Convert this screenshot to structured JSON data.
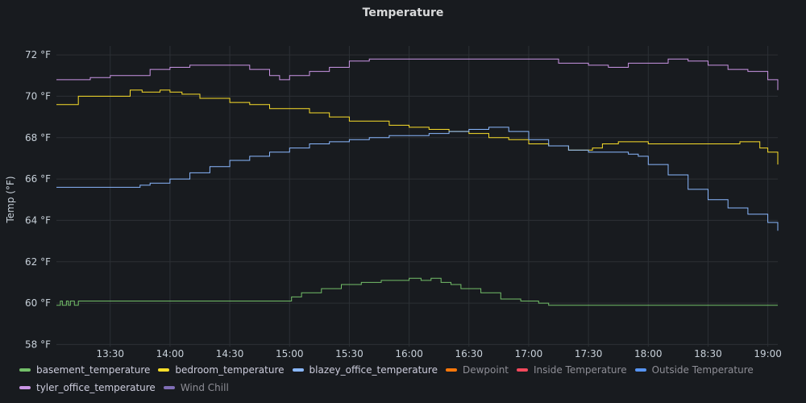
{
  "chart_data": {
    "type": "line",
    "title": "Temperature",
    "ylabel": "Temp (°F)",
    "y_unit": "°F",
    "ylim": [
      57.9,
      72.9
    ],
    "y_ticks": [
      58,
      60,
      62,
      64,
      66,
      68,
      70,
      72
    ],
    "xlim": [
      "13:03",
      "19:05"
    ],
    "x_ticks": [
      "13:30",
      "14:00",
      "14:30",
      "15:00",
      "15:30",
      "16:00",
      "16:30",
      "17:00",
      "17:30",
      "18:00",
      "18:30",
      "19:00"
    ],
    "grid": true,
    "legend_position": "bottom",
    "series": [
      {
        "name": "basement_temperature",
        "color": "#73bf69",
        "visible": true,
        "x": [
          "13:03",
          "13:05",
          "13:06",
          "13:08",
          "13:09",
          "13:10",
          "13:12",
          "13:14",
          "13:20",
          "13:30",
          "14:00",
          "14:30",
          "15:00",
          "15:01",
          "15:06",
          "15:16",
          "15:26",
          "15:30",
          "15:36",
          "15:46",
          "15:51",
          "16:00",
          "16:06",
          "16:11",
          "16:16",
          "16:21",
          "16:26",
          "16:36",
          "16:46",
          "16:56",
          "17:00",
          "17:05",
          "17:10",
          "17:30",
          "18:00",
          "18:30",
          "19:00",
          "19:04",
          "19:05"
        ],
        "values": [
          59.9,
          60.1,
          59.9,
          60.1,
          59.9,
          60.1,
          59.9,
          60.1,
          60.1,
          60.1,
          60.1,
          60.1,
          60.1,
          60.3,
          60.5,
          60.7,
          60.9,
          60.9,
          61.0,
          61.1,
          61.1,
          61.2,
          61.1,
          61.2,
          61.0,
          60.9,
          60.7,
          60.5,
          60.2,
          60.1,
          60.1,
          60.0,
          59.9,
          59.9,
          59.9,
          59.9,
          59.9,
          59.9,
          59.9
        ]
      },
      {
        "name": "bedroom_temperature",
        "color": "#fade2a",
        "visible": true,
        "x": [
          "13:03",
          "13:10",
          "13:14",
          "13:30",
          "13:40",
          "13:46",
          "13:55",
          "14:00",
          "14:06",
          "14:15",
          "14:30",
          "14:40",
          "14:50",
          "15:00",
          "15:10",
          "15:20",
          "15:30",
          "15:40",
          "15:50",
          "16:00",
          "16:10",
          "16:20",
          "16:30",
          "16:40",
          "16:50",
          "17:00",
          "17:10",
          "17:20",
          "17:30",
          "17:32",
          "17:37",
          "17:45",
          "18:00",
          "18:30",
          "18:46",
          "18:56",
          "19:00",
          "19:05"
        ],
        "values": [
          69.6,
          69.6,
          70.0,
          70.0,
          70.3,
          70.2,
          70.3,
          70.2,
          70.1,
          69.9,
          69.7,
          69.6,
          69.4,
          69.4,
          69.2,
          69.0,
          68.8,
          68.8,
          68.6,
          68.5,
          68.4,
          68.3,
          68.2,
          68.0,
          67.9,
          67.7,
          67.6,
          67.4,
          67.4,
          67.5,
          67.7,
          67.8,
          67.7,
          67.7,
          67.8,
          67.5,
          67.3,
          66.7
        ]
      },
      {
        "name": "blazey_office_temperature",
        "color": "#8ab8ff",
        "visible": true,
        "x": [
          "13:03",
          "13:30",
          "13:45",
          "13:50",
          "14:00",
          "14:10",
          "14:20",
          "14:30",
          "14:40",
          "14:50",
          "15:00",
          "15:10",
          "15:20",
          "15:30",
          "15:40",
          "15:50",
          "16:00",
          "16:10",
          "16:20",
          "16:30",
          "16:40",
          "16:50",
          "17:00",
          "17:10",
          "17:20",
          "17:30",
          "17:40",
          "17:50",
          "17:55",
          "18:00",
          "18:10",
          "18:20",
          "18:30",
          "18:40",
          "18:50",
          "19:00",
          "19:05"
        ],
        "values": [
          65.6,
          65.6,
          65.7,
          65.8,
          66.0,
          66.3,
          66.6,
          66.9,
          67.1,
          67.3,
          67.5,
          67.7,
          67.8,
          67.9,
          68.0,
          68.1,
          68.1,
          68.2,
          68.3,
          68.4,
          68.5,
          68.3,
          67.9,
          67.6,
          67.4,
          67.3,
          67.3,
          67.2,
          67.1,
          66.7,
          66.2,
          65.5,
          65.0,
          64.6,
          64.3,
          63.9,
          63.5
        ]
      },
      {
        "name": "Dewpoint",
        "color": "#ff780a",
        "visible": false,
        "x": [],
        "values": []
      },
      {
        "name": "Inside Temperature",
        "color": "#f2495c",
        "visible": false,
        "x": [],
        "values": []
      },
      {
        "name": "Outside Temperature",
        "color": "#5794f2",
        "visible": false,
        "x": [],
        "values": []
      },
      {
        "name": "tyler_office_temperature",
        "color": "#ca95e5",
        "visible": true,
        "x": [
          "13:03",
          "13:10",
          "13:20",
          "13:30",
          "13:40",
          "13:50",
          "14:00",
          "14:10",
          "14:20",
          "14:30",
          "14:40",
          "14:50",
          "14:55",
          "15:00",
          "15:10",
          "15:20",
          "15:30",
          "15:40",
          "15:50",
          "16:00",
          "16:30",
          "17:00",
          "17:15",
          "17:30",
          "17:40",
          "17:50",
          "18:00",
          "18:10",
          "18:20",
          "18:30",
          "18:40",
          "18:50",
          "19:00",
          "19:05"
        ],
        "values": [
          70.8,
          70.8,
          70.9,
          71.0,
          71.0,
          71.3,
          71.4,
          71.5,
          71.5,
          71.5,
          71.3,
          71.0,
          70.8,
          71.0,
          71.2,
          71.4,
          71.7,
          71.8,
          71.8,
          71.8,
          71.8,
          71.8,
          71.6,
          71.5,
          71.4,
          71.6,
          71.6,
          71.8,
          71.7,
          71.5,
          71.3,
          71.2,
          70.8,
          70.3
        ]
      },
      {
        "name": "Wind Chill",
        "color": "#806eb7",
        "visible": false,
        "x": [],
        "values": []
      }
    ]
  }
}
